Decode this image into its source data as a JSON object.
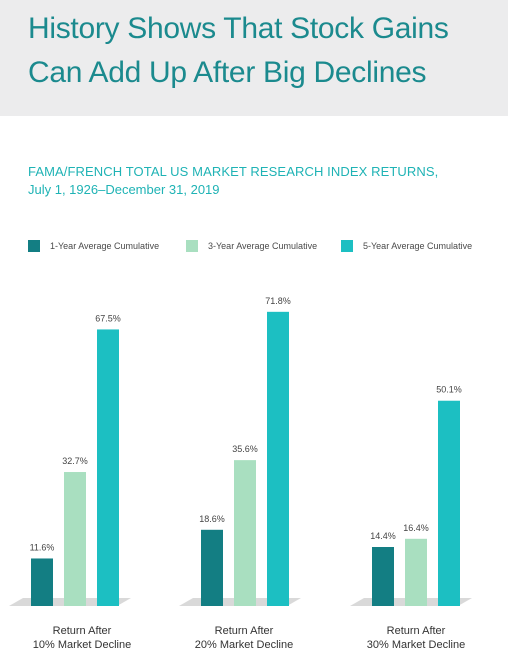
{
  "header": {
    "title_line_1": "History Shows That Stock Gains",
    "title_line_2": "Can Add Up After Big Declines",
    "background": "#ececed",
    "title_color": "#1b8a8e"
  },
  "subtitle": {
    "line_1": "FAMA/FRENCH TOTAL US MARKET RESEARCH INDEX RETURNS,",
    "line_2": "July 1, 1926–December 31, 2019",
    "color": "#1fb3b5"
  },
  "chart_data": {
    "type": "bar",
    "title": "FAMA/FRENCH TOTAL US MARKET RESEARCH INDEX RETURNS, July 1, 1926–December 31, 2019",
    "categories": [
      "Return After 10% Market Decline",
      "Return After 20% Market Decline",
      "Return After 30% Market Decline"
    ],
    "category_lines": [
      [
        "Return After",
        "10% Market Decline"
      ],
      [
        "Return After",
        "20% Market Decline"
      ],
      [
        "Return After",
        "30% Market Decline"
      ]
    ],
    "series": [
      {
        "name": "1-Year Average Cumulative",
        "color": "#137e83",
        "values": [
          11.6,
          18.6,
          14.4
        ],
        "labels": [
          "11.6%",
          "18.6%",
          "14.4%"
        ]
      },
      {
        "name": "3-Year Average Cumulative",
        "color": "#a9dfc0",
        "values": [
          32.7,
          35.6,
          16.4
        ],
        "labels": [
          "32.7%",
          "35.6%",
          "16.4%"
        ]
      },
      {
        "name": "5-Year Average Cumulative",
        "color": "#1cbfc2",
        "values": [
          67.5,
          71.8,
          50.1
        ],
        "labels": [
          "67.5%",
          "71.8%",
          "50.1%"
        ]
      }
    ],
    "unit": "%",
    "ylim": [
      0,
      72
    ],
    "grid": false,
    "legend": "top",
    "xlabel": "",
    "ylabel": ""
  }
}
